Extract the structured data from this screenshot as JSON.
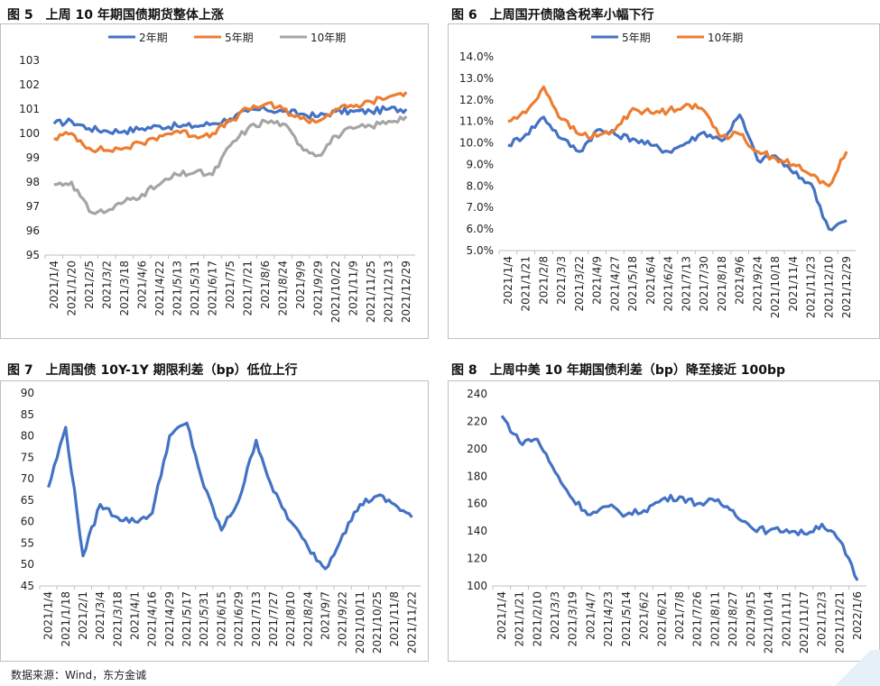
{
  "source": "数据来源：Wind，东方金诚",
  "colors": {
    "blue": "#4472C4",
    "orange": "#ED7D31",
    "gray": "#A5A5A5"
  },
  "chart_data": [
    {
      "id": "c1",
      "type": "line",
      "title_num": "图 5",
      "title": "上周 10 年期国债期货整体上涨",
      "categories": [
        "2021/1/4",
        "2021/1/20",
        "2021/2/5",
        "2021/3/2",
        "2021/3/18",
        "2021/4/6",
        "2021/4/22",
        "2021/5/13",
        "2021/5/31",
        "2021/6/17",
        "2021/7/5",
        "2021/7/21",
        "2021/8/6",
        "2021/8/24",
        "2021/9/9",
        "2021/9/29",
        "2021/10/22",
        "2021/11/9",
        "2021/11/25",
        "2021/12/13",
        "2021/12/29"
      ],
      "ylim": [
        95,
        103
      ],
      "yticks": [
        "95",
        "96",
        "97",
        "98",
        "99",
        "100",
        "101",
        "102",
        "103"
      ],
      "legend": "top",
      "series": [
        {
          "name": "2年期",
          "color": "blue",
          "values": [
            100.4,
            100.5,
            100.2,
            100.1,
            100.1,
            100.2,
            100.3,
            100.3,
            100.3,
            100.4,
            100.6,
            100.9,
            101.0,
            100.9,
            100.8,
            100.7,
            100.9,
            100.9,
            100.9,
            101.0,
            101.0
          ]
        },
        {
          "name": "5年期",
          "color": "orange",
          "values": [
            99.8,
            100.0,
            99.4,
            99.3,
            99.4,
            99.6,
            99.9,
            100.1,
            99.9,
            100.0,
            100.5,
            101.0,
            101.2,
            101.0,
            100.6,
            100.5,
            101.0,
            101.1,
            101.3,
            101.5,
            101.7
          ]
        },
        {
          "name": "10年期",
          "color": "gray",
          "values": [
            97.9,
            98.0,
            96.8,
            96.8,
            97.2,
            97.5,
            97.9,
            98.3,
            98.4,
            98.3,
            99.5,
            100.2,
            100.5,
            100.4,
            99.5,
            99.1,
            99.9,
            100.2,
            100.3,
            100.5,
            100.7
          ]
        }
      ]
    },
    {
      "id": "c2",
      "type": "line",
      "title_num": "图 6",
      "title": "上周国开债隐含税率小幅下行",
      "categories": [
        "2021/1/4",
        "2021/1/21",
        "2021/2/8",
        "2021/3/3",
        "2021/3/22",
        "2021/4/9",
        "2021/4/27",
        "2021/5/18",
        "2021/6/4",
        "2021/6/24",
        "2021/7/13",
        "2021/7/30",
        "2021/8/18",
        "2021/9/6",
        "2021/9/24",
        "2021/10/18",
        "2021/11/4",
        "2021/11/23",
        "2021/12/10",
        "2021/12/29"
      ],
      "ylim": [
        5,
        14
      ],
      "yticks": [
        "5.0%",
        "6.0%",
        "7.0%",
        "8.0%",
        "9.0%",
        "10.0%",
        "11.0%",
        "12.0%",
        "13.0%",
        "14.0%"
      ],
      "legend": "top",
      "series": [
        {
          "name": "5年期",
          "color": "blue",
          "values": [
            9.9,
            10.4,
            11.2,
            10.2,
            9.6,
            10.6,
            10.4,
            10.2,
            9.9,
            9.6,
            10.0,
            10.5,
            10.1,
            11.3,
            9.2,
            9.4,
            8.6,
            8.1,
            6.0,
            6.4
          ]
        },
        {
          "name": "10年期",
          "color": "orange",
          "values": [
            11.0,
            11.4,
            12.6,
            11.1,
            10.4,
            10.3,
            10.6,
            11.6,
            11.4,
            11.5,
            11.8,
            11.5,
            10.3,
            10.4,
            9.6,
            9.3,
            9.0,
            8.5,
            8.0,
            9.6
          ]
        }
      ]
    },
    {
      "id": "c3",
      "type": "line",
      "title_num": "图 7",
      "title": "上周国债 10Y-1Y 期限利差（bp）低位上行",
      "categories": [
        "2021/1/4",
        "2021/1/18",
        "2021/2/1",
        "2021/3/4",
        "2021/3/18",
        "2021/4/1",
        "2021/4/16",
        "2021/4/29",
        "2021/5/17",
        "2021/5/31",
        "2021/6/15",
        "2021/6/29",
        "2021/7/13",
        "2021/7/27",
        "2021/8/10",
        "2021/8/24",
        "2021/9/7",
        "2021/9/22",
        "2021/10/11",
        "2021/10/25",
        "2021/11/8",
        "2021/11/22"
      ],
      "ylim": [
        45,
        90
      ],
      "yticks": [
        "45",
        "50",
        "55",
        "60",
        "65",
        "70",
        "75",
        "80",
        "85",
        "90"
      ],
      "legend": "none",
      "series": [
        {
          "name": "",
          "color": "blue",
          "values": [
            68,
            82,
            52,
            64,
            61,
            60,
            62,
            80,
            83,
            68,
            58,
            65,
            79,
            67,
            60,
            54,
            49,
            57,
            64,
            66,
            64,
            61
          ]
        }
      ]
    },
    {
      "id": "c4",
      "type": "line",
      "title_num": "图 8",
      "title": "上周中美 10 年期国债利差（bp）降至接近 100bp",
      "categories": [
        "2021/1/4",
        "2021/1/21",
        "2021/2/10",
        "2021/3/3",
        "2021/3/19",
        "2021/4/7",
        "2021/4/23",
        "2021/5/14",
        "2021/6/2",
        "2021/6/21",
        "2021/7/8",
        "2021/7/26",
        "2021/8/11",
        "2021/8/27",
        "2021/9/15",
        "2021/10/14",
        "2021/11/1",
        "2021/11/17",
        "2021/12/3",
        "2021/12/21",
        "2022/1/6"
      ],
      "ylim": [
        100,
        240
      ],
      "yticks": [
        "100",
        "120",
        "140",
        "160",
        "180",
        "200",
        "220",
        "240"
      ],
      "legend": "none",
      "series": [
        {
          "name": "",
          "color": "blue",
          "values": [
            224,
            205,
            207,
            183,
            163,
            152,
            158,
            152,
            155,
            163,
            165,
            160,
            162,
            155,
            143,
            140,
            141,
            138,
            145,
            133,
            104
          ]
        }
      ]
    }
  ]
}
